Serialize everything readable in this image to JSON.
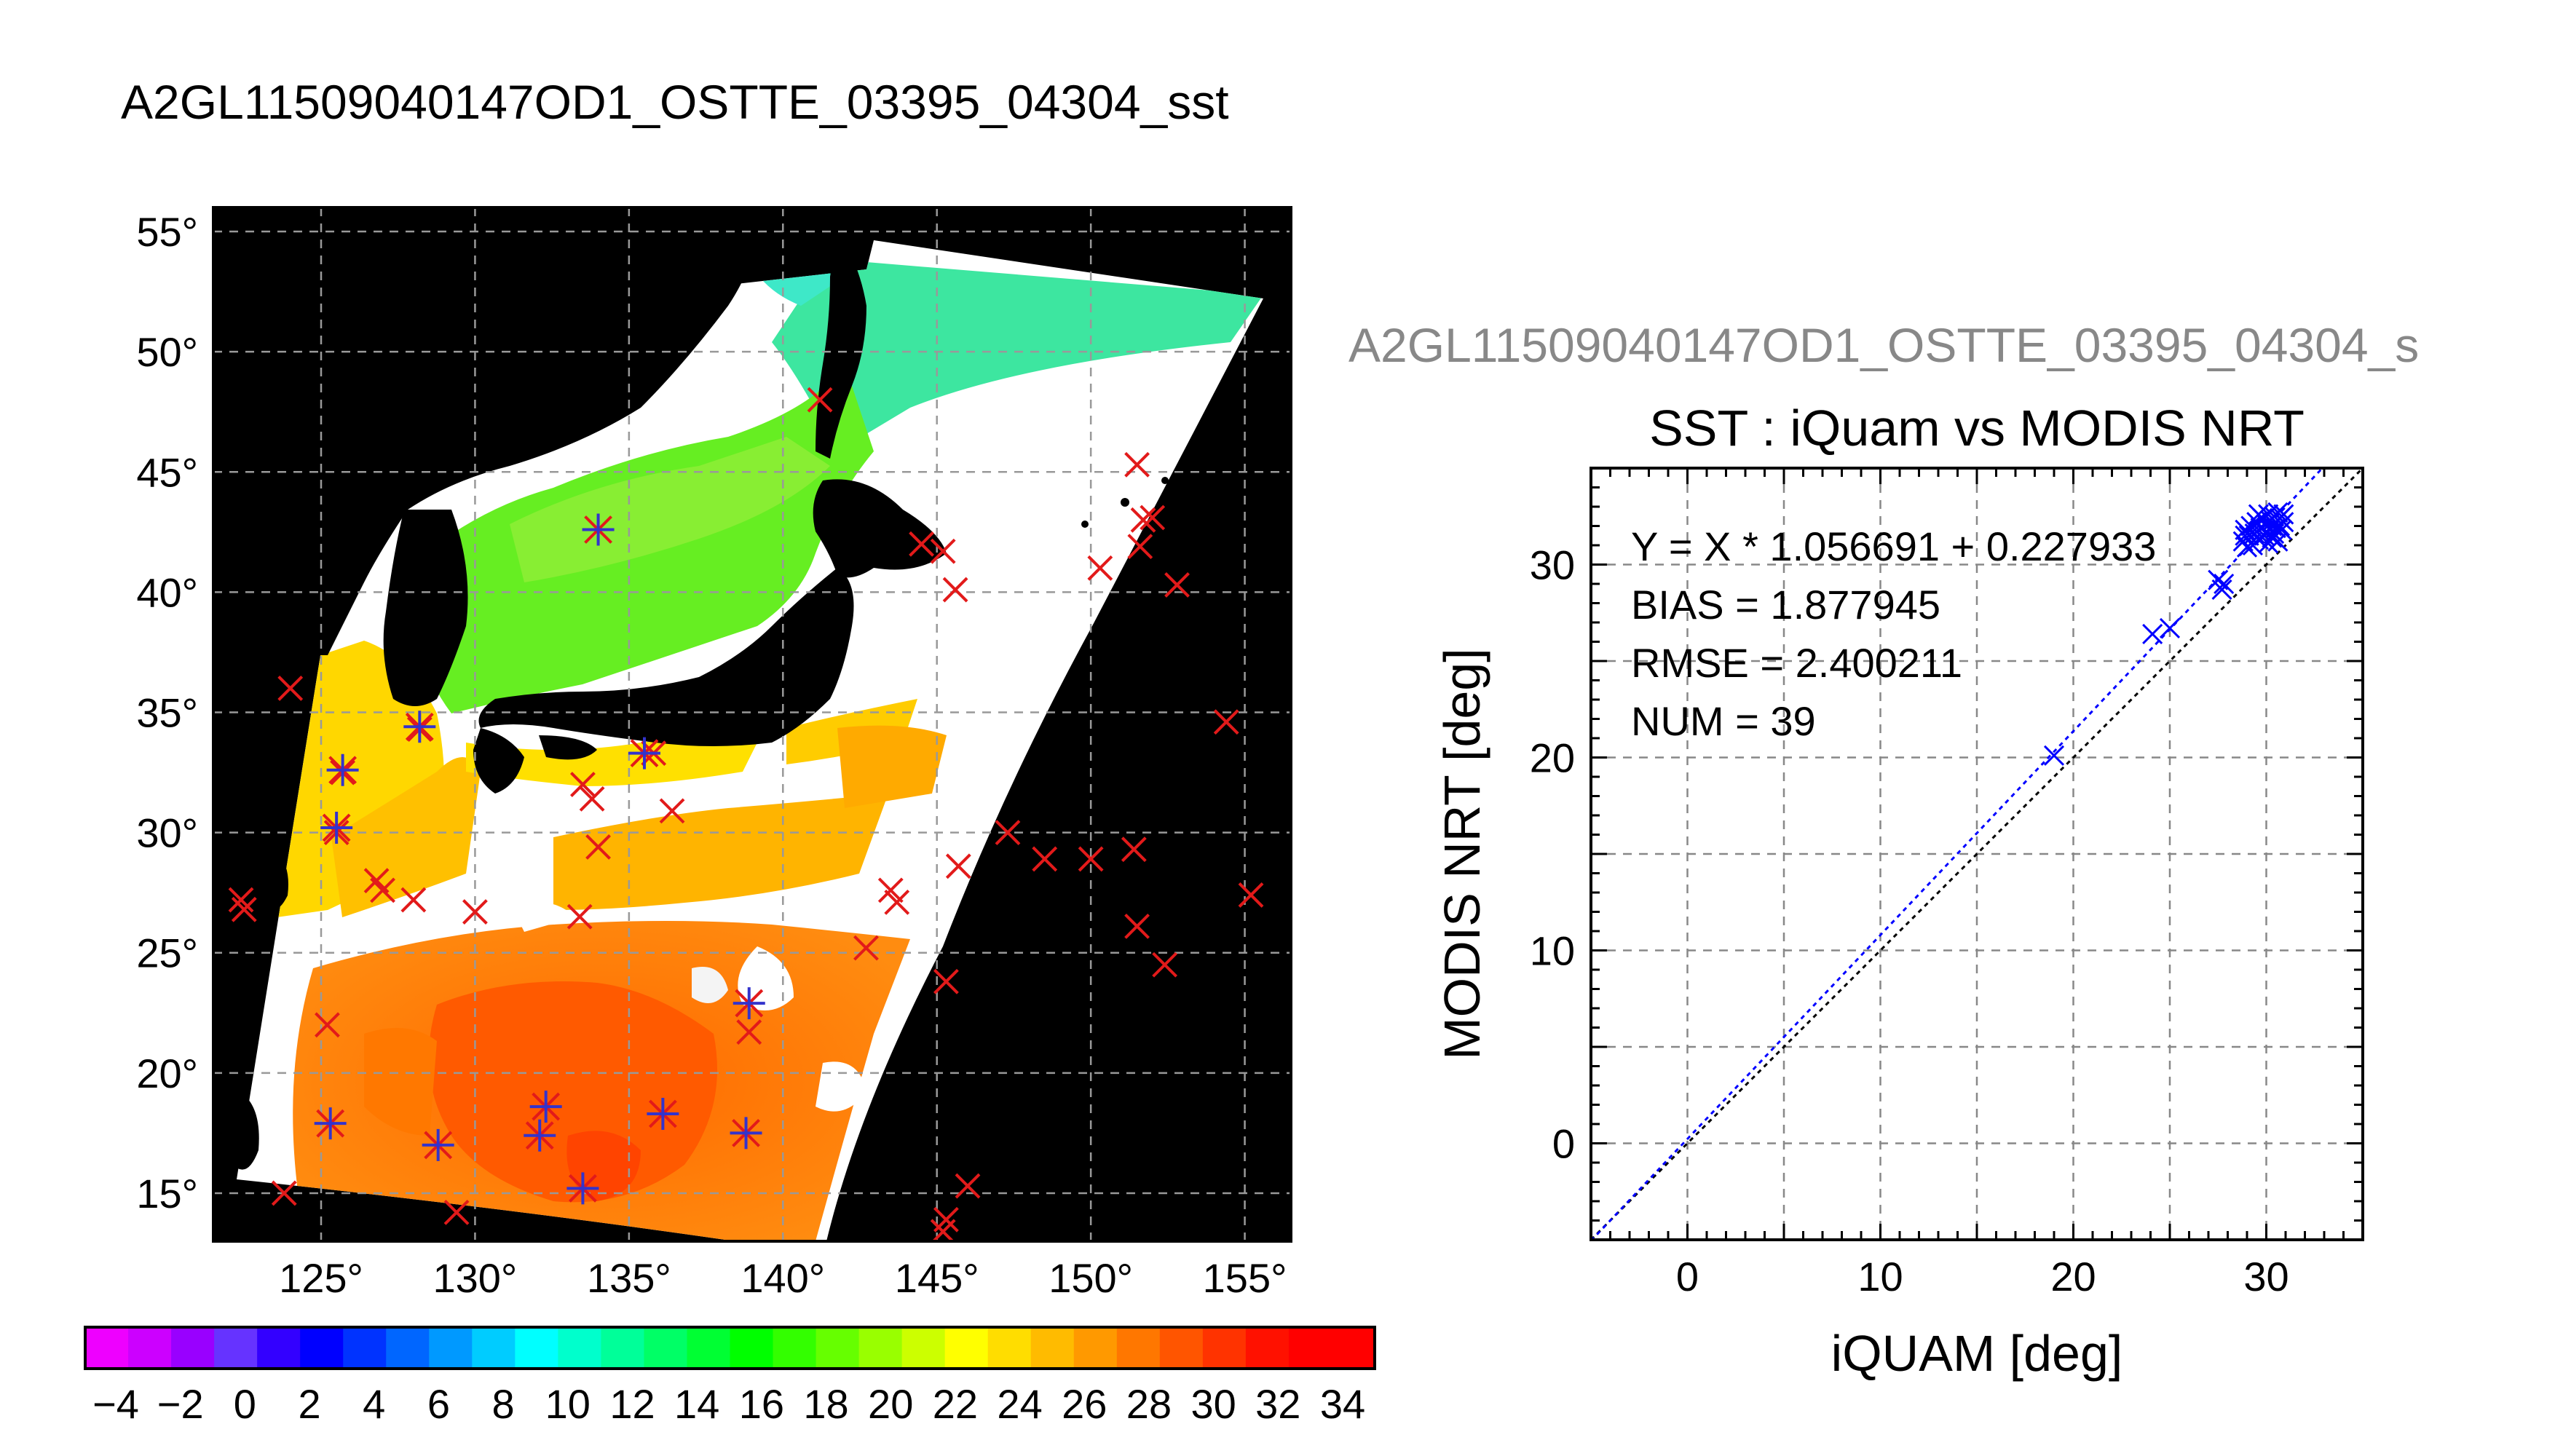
{
  "map": {
    "title": "A2GL11509040147OD1_OSTTE_03395_04304_sst",
    "lat_ticks": [
      55,
      50,
      45,
      40,
      35,
      30,
      25,
      20,
      15
    ],
    "lon_ticks": [
      125,
      130,
      135,
      140,
      145,
      150,
      155
    ],
    "lon_range": [
      121.5,
      156.5
    ],
    "lat_range": [
      13,
      56
    ],
    "degree_symbol": "°",
    "colors": {
      "land": "#000000",
      "cloud": "#ffffff",
      "iquam_marker": "#e21a1a",
      "matchup_marker": "#3333cc"
    },
    "iquam_points": [
      {
        "lon": 124.0,
        "lat": 36.0
      },
      {
        "lon": 122.4,
        "lat": 27.2
      },
      {
        "lon": 122.5,
        "lat": 26.8
      },
      {
        "lon": 123.8,
        "lat": 15.0
      },
      {
        "lon": 125.7,
        "lat": 32.5
      },
      {
        "lon": 128.2,
        "lat": 34.3
      },
      {
        "lon": 125.5,
        "lat": 30.0
      },
      {
        "lon": 126.8,
        "lat": 28.0
      },
      {
        "lon": 127.0,
        "lat": 27.6
      },
      {
        "lon": 128.0,
        "lat": 27.2
      },
      {
        "lon": 130.0,
        "lat": 26.7
      },
      {
        "lon": 125.2,
        "lat": 22.0
      },
      {
        "lon": 129.4,
        "lat": 14.2
      },
      {
        "lon": 133.5,
        "lat": 32.0
      },
      {
        "lon": 133.8,
        "lat": 31.4
      },
      {
        "lon": 134.0,
        "lat": 29.4
      },
      {
        "lon": 133.4,
        "lat": 26.5
      },
      {
        "lon": 135.8,
        "lat": 33.3
      },
      {
        "lon": 136.4,
        "lat": 30.9
      },
      {
        "lon": 138.9,
        "lat": 21.7
      },
      {
        "lon": 141.2,
        "lat": 48.0
      },
      {
        "lon": 144.5,
        "lat": 42.0
      },
      {
        "lon": 145.2,
        "lat": 41.7
      },
      {
        "lon": 145.6,
        "lat": 40.1
      },
      {
        "lon": 143.5,
        "lat": 27.6
      },
      {
        "lon": 143.7,
        "lat": 27.1
      },
      {
        "lon": 145.7,
        "lat": 28.6
      },
      {
        "lon": 142.7,
        "lat": 25.2
      },
      {
        "lon": 145.3,
        "lat": 23.8
      },
      {
        "lon": 146.0,
        "lat": 15.3
      },
      {
        "lon": 145.3,
        "lat": 13.9
      },
      {
        "lon": 145.2,
        "lat": 13.4
      },
      {
        "lon": 147.3,
        "lat": 30.0
      },
      {
        "lon": 148.5,
        "lat": 28.9
      },
      {
        "lon": 150.0,
        "lat": 28.9
      },
      {
        "lon": 151.4,
        "lat": 29.3
      },
      {
        "lon": 151.5,
        "lat": 26.1
      },
      {
        "lon": 152.4,
        "lat": 24.5
      },
      {
        "lon": 150.3,
        "lat": 41.0
      },
      {
        "lon": 151.5,
        "lat": 45.3
      },
      {
        "lon": 151.7,
        "lat": 43.0
      },
      {
        "lon": 152.0,
        "lat": 43.1
      },
      {
        "lon": 151.6,
        "lat": 41.9
      },
      {
        "lon": 152.8,
        "lat": 40.3
      },
      {
        "lon": 154.4,
        "lat": 34.6
      },
      {
        "lon": 155.2,
        "lat": 27.4
      }
    ],
    "matchup_points": [
      {
        "lon": 134.0,
        "lat": 42.6
      },
      {
        "lon": 125.7,
        "lat": 32.6
      },
      {
        "lon": 128.2,
        "lat": 34.4
      },
      {
        "lon": 125.5,
        "lat": 30.2
      },
      {
        "lon": 125.3,
        "lat": 17.9
      },
      {
        "lon": 128.8,
        "lat": 17.0
      },
      {
        "lon": 132.3,
        "lat": 18.6
      },
      {
        "lon": 132.1,
        "lat": 17.4
      },
      {
        "lon": 133.5,
        "lat": 15.2
      },
      {
        "lon": 136.1,
        "lat": 18.3
      },
      {
        "lon": 138.8,
        "lat": 17.5
      },
      {
        "lon": 138.9,
        "lat": 22.9
      },
      {
        "lon": 135.5,
        "lat": 33.3
      }
    ]
  },
  "colorbar": {
    "tick_labels": [
      "−4",
      "−2",
      "0",
      "2",
      "4",
      "6",
      "8",
      "10",
      "12",
      "14",
      "16",
      "18",
      "20",
      "22",
      "24",
      "26",
      "28",
      "30",
      "32",
      "34"
    ],
    "colors": [
      "#ee00ff",
      "#cc00ff",
      "#9900ff",
      "#6633ff",
      "#3300ff",
      "#0000ff",
      "#0033ff",
      "#0066ff",
      "#0099ff",
      "#00ccff",
      "#00ffff",
      "#00ffcc",
      "#00ff99",
      "#00ff66",
      "#00ff33",
      "#00ff00",
      "#33ff00",
      "#66ff00",
      "#99ff00",
      "#ccff00",
      "#ffff00",
      "#ffdd00",
      "#ffbb00",
      "#ff9900",
      "#ff7700",
      "#ff5500",
      "#ff3300",
      "#ff1100",
      "#ff0000",
      "#ff0000"
    ]
  },
  "chart_data": {
    "type": "scatter",
    "supertitle": "A2GL11509040147OD1_OSTTE_03395_04304_s",
    "title": "SST : iQuam vs MODIS NRT",
    "xlabel": "iQUAM [deg]",
    "ylabel": "MODIS NRT [deg]",
    "xlim": [
      -5,
      35
    ],
    "ylim": [
      -5,
      35
    ],
    "xticks": [
      0,
      10,
      20,
      30
    ],
    "yticks": [
      0,
      10,
      20,
      30
    ],
    "grid": true,
    "annotations": [
      "Y = X * 1.056691 + 0.227933",
      "BIAS = 1.877945",
      "RMSE = 2.400211",
      "NUM = 39"
    ],
    "fit": {
      "slope": 1.056691,
      "intercept": 0.227933,
      "color": "#0000ff"
    },
    "identity_line": {
      "color": "#000000"
    },
    "marker_color": "#0000ff",
    "points": [
      [
        19.0,
        20.1
      ],
      [
        24.1,
        26.4
      ],
      [
        25.0,
        26.7
      ],
      [
        27.5,
        29.2
      ],
      [
        27.7,
        28.7
      ],
      [
        27.8,
        29.0
      ],
      [
        28.8,
        31.2
      ],
      [
        28.9,
        31.8
      ],
      [
        29.1,
        31.5
      ],
      [
        29.2,
        32.0
      ],
      [
        29.3,
        31.0
      ],
      [
        29.4,
        31.6
      ],
      [
        29.5,
        32.2
      ],
      [
        29.6,
        31.3
      ],
      [
        29.7,
        31.9
      ],
      [
        29.8,
        32.4
      ],
      [
        29.9,
        31.5
      ],
      [
        30.0,
        32.1
      ],
      [
        30.0,
        31.7
      ],
      [
        30.1,
        32.6
      ],
      [
        30.2,
        31.8
      ],
      [
        30.2,
        32.3
      ],
      [
        30.3,
        31.4
      ],
      [
        30.3,
        32.0
      ],
      [
        30.4,
        32.5
      ],
      [
        30.4,
        31.6
      ],
      [
        30.5,
        32.2
      ],
      [
        30.5,
        31.9
      ],
      [
        30.6,
        32.7
      ],
      [
        30.6,
        31.2
      ],
      [
        30.7,
        32.0
      ],
      [
        30.7,
        32.4
      ],
      [
        30.8,
        31.8
      ],
      [
        30.9,
        32.6
      ],
      [
        29.0,
        30.9
      ],
      [
        30.1,
        31.1
      ],
      [
        29.6,
        32.6
      ],
      [
        30.9,
        32.2
      ],
      [
        28.9,
        31.5
      ]
    ]
  }
}
